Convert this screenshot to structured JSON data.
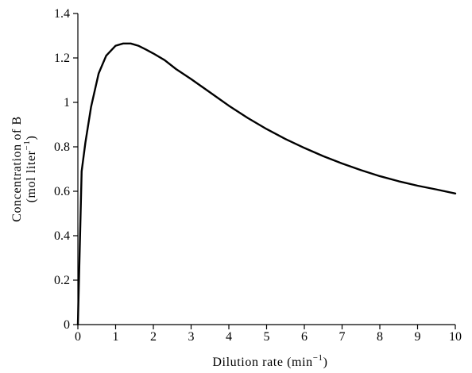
{
  "chart_data": {
    "type": "line",
    "title": "",
    "xlabel": {
      "main": "Dilution rate (min",
      "sup": "−1",
      "close": ")"
    },
    "ylabel": {
      "line1": "Concentration of B",
      "line2_main": "(mol liter",
      "line2_sup": "−1",
      "line2_close": ")"
    },
    "xlim": [
      0,
      10
    ],
    "ylim": [
      0,
      1.4
    ],
    "x_ticks": [
      0,
      1,
      2,
      3,
      4,
      5,
      6,
      7,
      8,
      9,
      10
    ],
    "x_tick_labels": [
      "0",
      "1",
      "2",
      "3",
      "4",
      "5",
      "6",
      "7",
      "8",
      "9",
      "10"
    ],
    "y_ticks": [
      0,
      0.2,
      0.4,
      0.6,
      0.8,
      1.0,
      1.2,
      1.4
    ],
    "y_tick_labels": [
      "0",
      "0.2",
      "0.4",
      "0.6",
      "0.8",
      "1",
      "1.2",
      "1.4"
    ],
    "grid": false,
    "legend": "none",
    "series": [
      {
        "color": "#000000",
        "x": [
          0,
          0.1,
          0.2,
          0.35,
          0.55,
          0.75,
          1.0,
          1.2,
          1.4,
          1.6,
          1.8,
          2.0,
          2.3,
          2.6,
          3.0,
          3.5,
          4.0,
          4.5,
          5.0,
          5.5,
          6.0,
          6.5,
          7.0,
          7.5,
          8.0,
          8.5,
          9.0,
          9.5,
          10.0
        ],
        "y": [
          0,
          0.69,
          0.82,
          0.98,
          1.13,
          1.21,
          1.255,
          1.265,
          1.265,
          1.255,
          1.238,
          1.22,
          1.19,
          1.15,
          1.105,
          1.045,
          0.985,
          0.93,
          0.88,
          0.835,
          0.795,
          0.758,
          0.725,
          0.695,
          0.668,
          0.645,
          0.625,
          0.608,
          0.59
        ]
      }
    ]
  }
}
